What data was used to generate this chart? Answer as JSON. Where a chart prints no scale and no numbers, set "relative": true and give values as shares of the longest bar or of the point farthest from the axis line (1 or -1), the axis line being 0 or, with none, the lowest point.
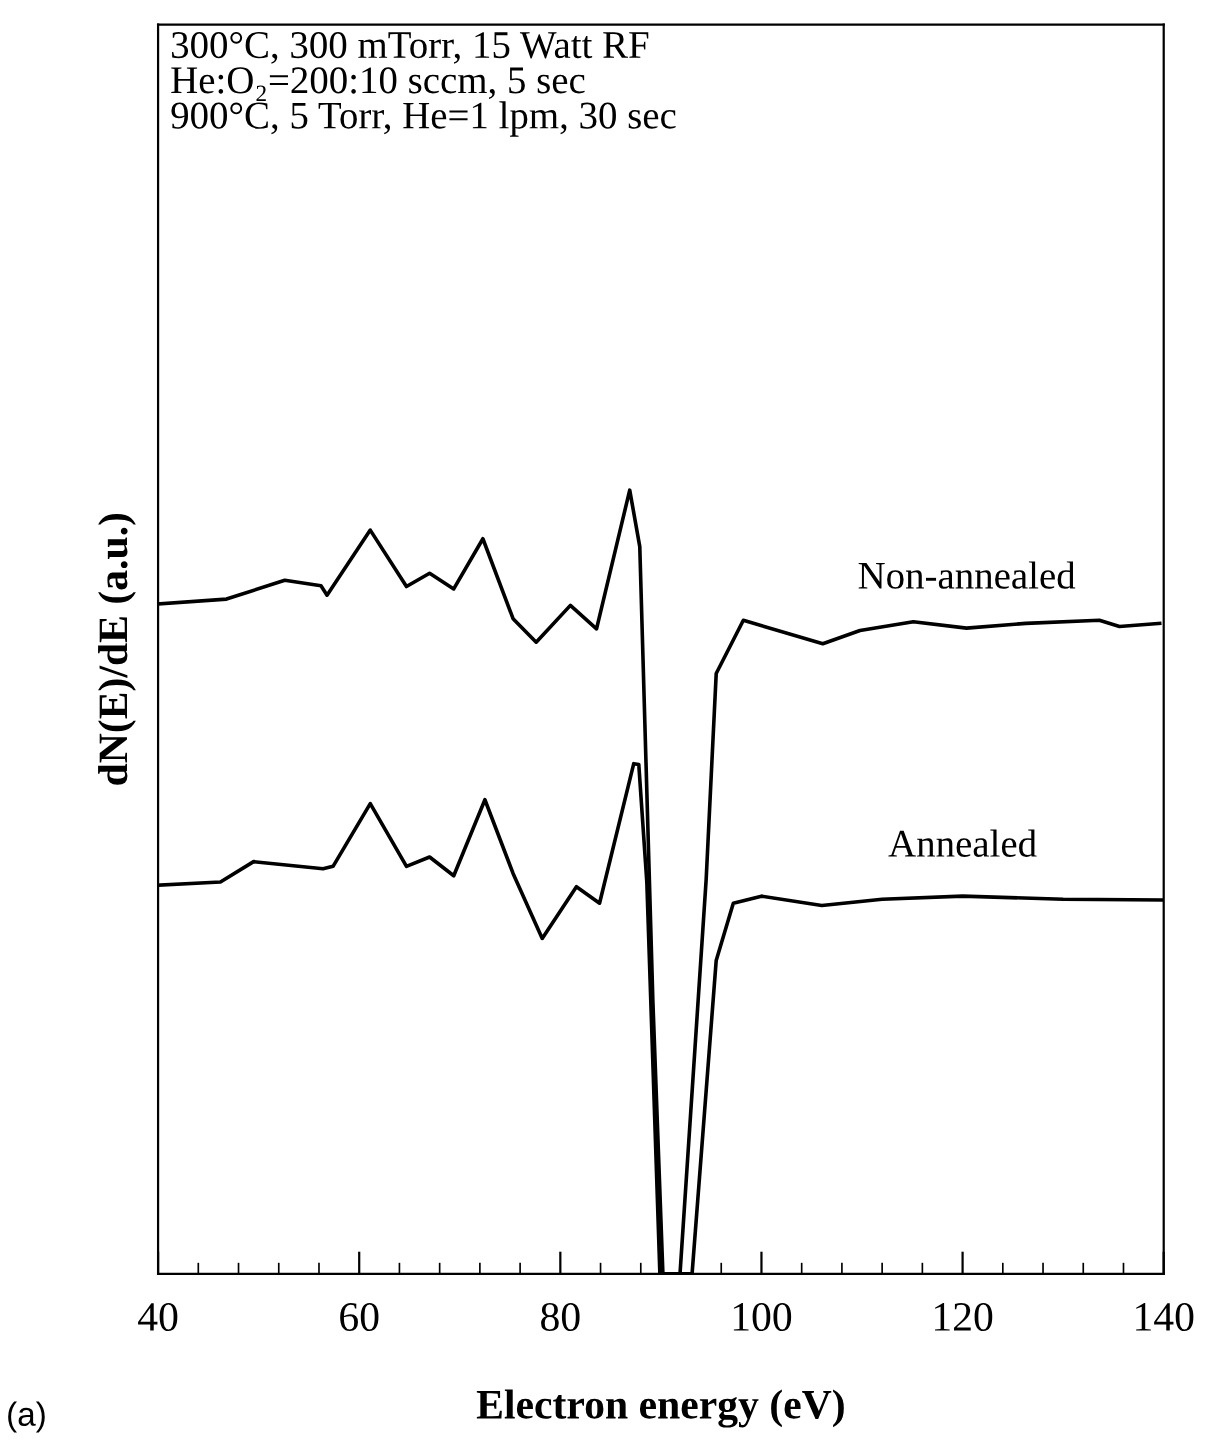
{
  "chart_data": {
    "type": "line",
    "relative": true,
    "xlabel": "Electron energy (eV)",
    "ylabel": "dN(E)/dE (a.u.)",
    "xlim": [
      40,
      140
    ],
    "xticks": [
      40,
      {
        "value": 44,
        "label": null
      },
      {
        "value": 48,
        "label": null
      },
      {
        "value": 52,
        "label": null
      },
      {
        "value": 56,
        "label": null
      },
      60,
      {
        "value": 64,
        "label": null
      },
      {
        "value": 68,
        "label": null
      },
      {
        "value": 72,
        "label": null
      },
      {
        "value": 76,
        "label": null
      },
      80,
      {
        "value": 84,
        "label": null
      },
      {
        "value": 88,
        "label": null
      },
      {
        "value": 92,
        "label": null
      },
      {
        "value": 96,
        "label": null
      },
      100,
      {
        "value": 104,
        "label": null
      },
      {
        "value": 108,
        "label": null
      },
      {
        "value": 112,
        "label": null
      },
      {
        "value": 116,
        "label": null
      },
      120,
      {
        "value": 124,
        "label": null
      },
      {
        "value": 128,
        "label": null
      },
      {
        "value": 132,
        "label": null
      },
      {
        "value": 136,
        "label": null
      },
      140
    ],
    "grid": false,
    "legend": false,
    "marker": "none",
    "line_style": "solid",
    "series": [
      {
        "name": "Non-annealed",
        "color": "#000000",
        "x": [
          40.2,
          46.8,
          52.6,
          56.2,
          56.8,
          61.1,
          64.7,
          67.0,
          69.4,
          72.3,
          75.3,
          77.6,
          81.0,
          83.6,
          86.9,
          87.9,
          89.2,
          90.2,
          91.9,
          94.5,
          95.5,
          98.2,
          106.1,
          109.8,
          115.1,
          120.4,
          126.3,
          133.6,
          135.6,
          139.6
        ],
        "values": [
          0.855,
          0.861,
          0.885,
          0.878,
          0.866,
          0.949,
          0.877,
          0.894,
          0.874,
          0.938,
          0.836,
          0.806,
          0.853,
          0.823,
          1,
          0.928,
          0.349,
          0,
          0,
          0.503,
          0.766,
          0.834,
          0.804,
          0.821,
          0.832,
          0.824,
          0.83,
          0.834,
          0.826,
          0.83
        ]
      },
      {
        "name": "Annealed",
        "color": "#000000",
        "x": [
          40.2,
          46.2,
          49.5,
          56.4,
          57.4,
          61.1,
          64.7,
          67.0,
          69.4,
          72.5,
          75.3,
          78.2,
          81.6,
          83.9,
          87.3,
          87.8,
          88.6,
          89.9,
          93.1,
          95.5,
          97.2,
          100,
          106,
          112,
          120,
          130,
          140
        ],
        "values": [
          0.496,
          0.5,
          0.526,
          0.517,
          0.52,
          0.6,
          0.52,
          0.532,
          0.508,
          0.605,
          0.511,
          0.428,
          0.494,
          0.473,
          0.651,
          0.65,
          0.5,
          0,
          0,
          0.4,
          0.473,
          0.482,
          0.47,
          0.478,
          0.482,
          0.478,
          0.477
        ]
      }
    ],
    "annotations": [
      "300°C, 300 mTorr, 15 Watt RF\nHe:O₂=200:10 sccm, 5 sec\n900°C, 5 Torr, He=1 lpm, 30 sec",
      "(a)"
    ]
  }
}
